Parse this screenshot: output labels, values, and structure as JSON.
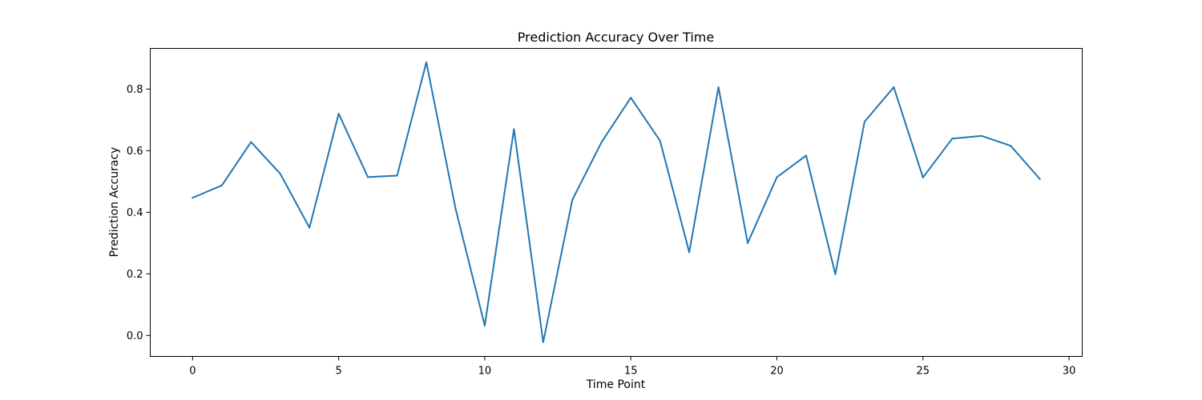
{
  "chart_data": {
    "type": "line",
    "title": "Prediction Accuracy Over Time",
    "xlabel": "Time Point",
    "ylabel": "Prediction Accuracy",
    "xlim": [
      -1.45,
      30.45
    ],
    "ylim": [
      -0.068,
      0.932
    ],
    "xticks": [
      0,
      5,
      10,
      15,
      20,
      25,
      30
    ],
    "yticks": [
      0.0,
      0.2,
      0.4,
      0.6,
      0.8
    ],
    "xtick_labels": [
      "0",
      "5",
      "10",
      "15",
      "20",
      "25",
      "30"
    ],
    "ytick_labels": [
      "0.0",
      "0.2",
      "0.4",
      "0.6",
      "0.8"
    ],
    "grid": false,
    "legend": "none",
    "series": [
      {
        "color": "#1f77b4",
        "x": [
          0,
          1,
          2,
          3,
          4,
          5,
          6,
          7,
          8,
          9,
          10,
          11,
          12,
          13,
          14,
          15,
          16,
          17,
          18,
          19,
          20,
          21,
          22,
          23,
          24,
          25,
          26,
          27,
          28,
          29
        ],
        "values": [
          0.447,
          0.487,
          0.628,
          0.525,
          0.35,
          0.72,
          0.514,
          0.519,
          0.887,
          0.412,
          0.032,
          0.67,
          -0.022,
          0.441,
          0.628,
          0.772,
          0.632,
          0.27,
          0.806,
          0.3,
          0.514,
          0.584,
          0.199,
          0.694,
          0.806,
          0.513,
          0.639,
          0.648,
          0.616,
          0.508
        ]
      }
    ]
  }
}
